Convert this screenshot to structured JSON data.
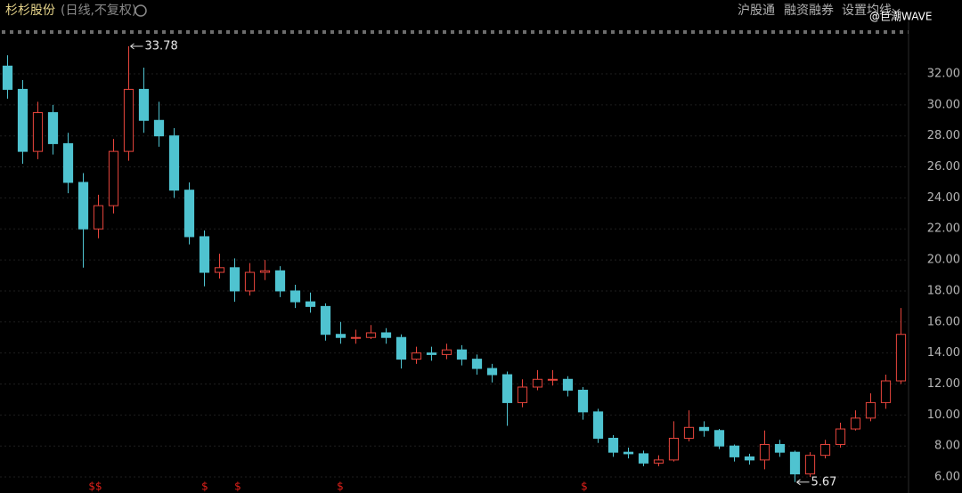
{
  "header": {
    "name": "杉杉股份",
    "mode": "(日线,不复权)",
    "links": [
      "沪股通",
      "融资融券",
      "设置均线"
    ],
    "watermark": "@巨潮WAVE"
  },
  "chart_data": {
    "type": "candlestick",
    "up_color": "#e8453c",
    "down_color": "#4fc3d0",
    "ylim": [
      4.97,
      34.18
    ],
    "yticks": [
      {
        "value": 6,
        "label": "6.00"
      },
      {
        "value": 8,
        "label": "8.00"
      },
      {
        "value": 10,
        "label": "10.00"
      },
      {
        "value": 12,
        "label": "12.00"
      },
      {
        "value": 14,
        "label": "14.00"
      },
      {
        "value": 16,
        "label": "16.00"
      },
      {
        "value": 18,
        "label": "18.00"
      },
      {
        "value": 20,
        "label": "20.00"
      },
      {
        "value": 22,
        "label": "22.00"
      },
      {
        "value": 24,
        "label": "24.00"
      },
      {
        "value": 26,
        "label": "26.00"
      },
      {
        "value": 28,
        "label": "28.00"
      },
      {
        "value": 30,
        "label": "30.00"
      },
      {
        "value": 32,
        "label": "32.00"
      }
    ],
    "grid": true,
    "open": [
      32.5,
      31,
      27,
      29.5,
      27.5,
      25,
      22,
      23.5,
      27,
      31,
      29,
      28,
      24.5,
      21.5,
      19.2,
      19.5,
      18,
      19.2,
      19.3,
      18,
      17.3,
      17,
      15.2,
      15,
      15,
      15.3,
      15,
      13.6,
      14,
      13.9,
      14.2,
      13.6,
      13,
      12.6,
      10.8,
      11.8,
      12.3,
      12.3,
      11.6,
      10.2,
      8.5,
      7.6,
      7.5,
      6.9,
      7.1,
      8.5,
      9.2,
      9,
      8,
      7.3,
      7.1,
      8.1,
      7.6,
      6.2,
      7.4,
      8.1,
      9.1,
      9.8,
      10.8,
      12.2
    ],
    "high": [
      33.2,
      31.6,
      30.2,
      30,
      28.2,
      25.6,
      24.2,
      27.8,
      33.78,
      32.4,
      30.2,
      28.5,
      25,
      21.9,
      20.4,
      20.1,
      19.8,
      20,
      19.6,
      18.4,
      17.9,
      17.2,
      16,
      15.5,
      15.8,
      15.6,
      15.2,
      14.4,
      14.4,
      14.6,
      14.5,
      13.9,
      13.3,
      12.8,
      12.3,
      12.9,
      12.9,
      12.5,
      11.8,
      10.4,
      8.7,
      7.9,
      7.7,
      7.4,
      9.6,
      10.3,
      9.6,
      9.1,
      8.1,
      7.5,
      9,
      8.4,
      7.7,
      7.6,
      8.4,
      9.5,
      10.3,
      11.4,
      12.6,
      16.9
    ],
    "low": [
      30.4,
      26.2,
      26.5,
      26.8,
      24.3,
      19.5,
      21.4,
      23,
      26.4,
      28.2,
      27.3,
      24,
      21,
      18.3,
      18.8,
      17.3,
      17.7,
      18.7,
      17.6,
      16.9,
      16.6,
      14.8,
      14.6,
      14.6,
      14.9,
      14.6,
      13,
      13.3,
      13.5,
      13.6,
      13.2,
      12.6,
      12.1,
      9.3,
      10.5,
      11.6,
      11.9,
      11.2,
      9.7,
      8.2,
      7.3,
      7.2,
      6.7,
      6.7,
      7,
      8.3,
      8.6,
      7.8,
      7,
      6.8,
      6.5,
      7.3,
      5.67,
      6,
      7.2,
      7.9,
      9,
      9.6,
      10.4,
      12
    ],
    "close": [
      31,
      27,
      29.5,
      27.5,
      25,
      22,
      23.5,
      27,
      31,
      29,
      28,
      24.5,
      21.5,
      19.2,
      19.5,
      18,
      19.2,
      19.3,
      18,
      17.3,
      17,
      15.2,
      15,
      15,
      15.3,
      15,
      13.6,
      14,
      13.9,
      14.2,
      13.6,
      13,
      12.6,
      10.8,
      11.8,
      12.3,
      12.3,
      11.6,
      10.2,
      8.5,
      7.6,
      7.5,
      6.9,
      7.1,
      8.5,
      9.2,
      9,
      8,
      7.3,
      7.1,
      8.1,
      7.6,
      6.2,
      7.4,
      8.1,
      9.1,
      9.8,
      10.8,
      12.2,
      15.2
    ],
    "markers": [
      "$$",
      "$",
      "$",
      "$",
      "$"
    ]
  }
}
